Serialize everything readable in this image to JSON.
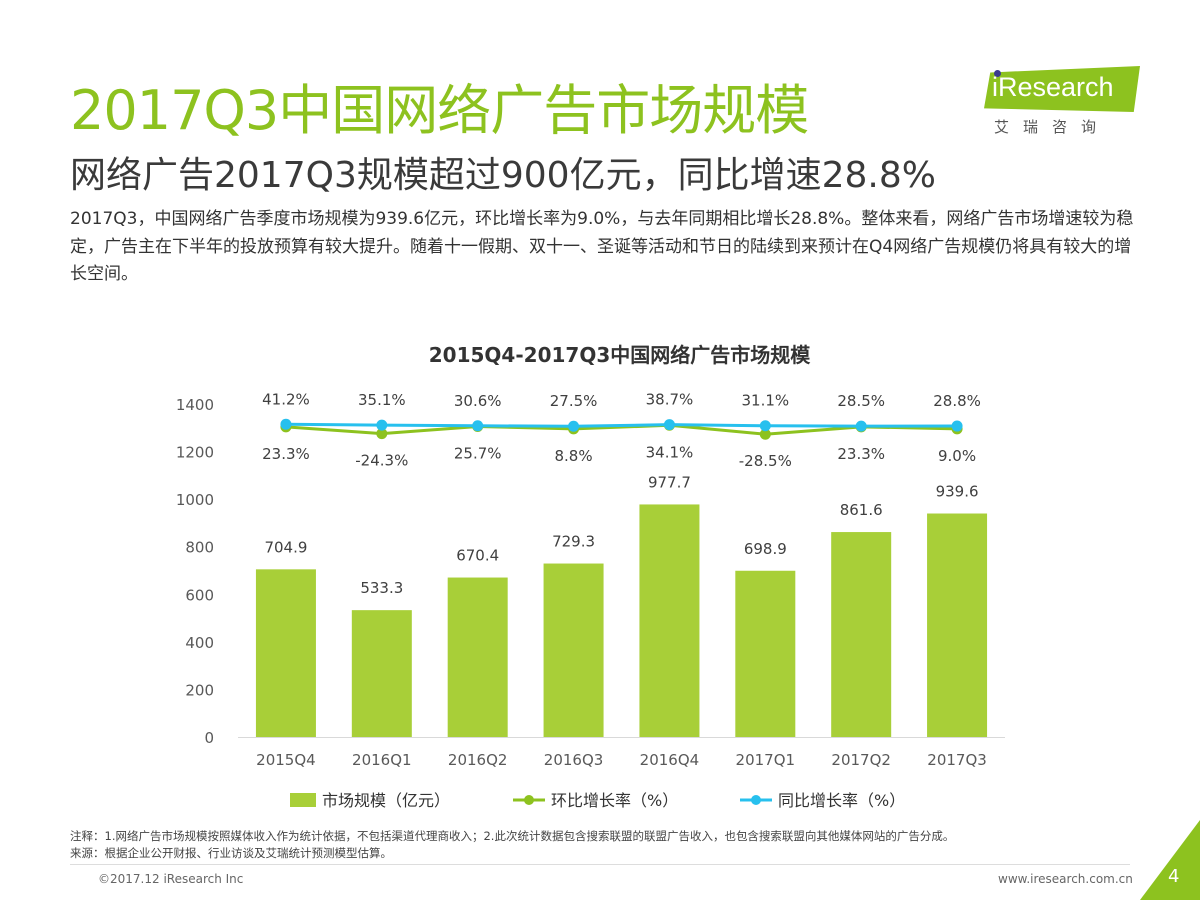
{
  "header": {
    "title": "2017Q3中国网络广告市场规模",
    "subtitle": "网络广告2017Q3规模超过900亿元，同比增速28.8%",
    "body": "2017Q3，中国网络广告季度市场规模为939.6亿元，环比增长率为9.0%，与去年同期相比增长28.8%。整体来看，网络广告市场增速较为稳定，广告主在下半年的投放预算有较大提升。随着十一假期、双十一、圣诞等活动和节日的陆续到来预计在Q4网络广告规模仍将具有较大的增长空间。"
  },
  "logo": {
    "text": "iResearch",
    "cn": "艾瑞咨询"
  },
  "chart_data": {
    "type": "bar",
    "title": "2015Q4-2017Q3中国网络广告市场规模",
    "categories": [
      "2015Q4",
      "2016Q1",
      "2016Q2",
      "2016Q3",
      "2016Q4",
      "2017Q1",
      "2017Q2",
      "2017Q3"
    ],
    "series": [
      {
        "name": "市场规模（亿元）",
        "type": "bar",
        "values": [
          704.9,
          533.3,
          670.4,
          729.3,
          977.7,
          698.9,
          861.6,
          939.6
        ],
        "labels": [
          "704.9",
          "533.3",
          "670.4",
          "729.3",
          "977.7",
          "698.9",
          "861.6",
          "939.6"
        ],
        "color": "#a8cf38"
      },
      {
        "name": "环比增长率（%）",
        "type": "line",
        "values": [
          23.3,
          -24.3,
          25.7,
          8.8,
          34.1,
          -28.5,
          23.3,
          9.0
        ],
        "labels": [
          "23.3%",
          "-24.3%",
          "25.7%",
          "8.8%",
          "34.1%",
          "-28.5%",
          "23.3%",
          "9.0%"
        ],
        "color": "#8dc21f"
      },
      {
        "name": "同比增长率（%）",
        "type": "line",
        "values": [
          41.2,
          35.1,
          30.6,
          27.5,
          38.7,
          31.1,
          28.5,
          28.8
        ],
        "labels": [
          "41.2%",
          "35.1%",
          "30.6%",
          "27.5%",
          "38.7%",
          "31.1%",
          "28.5%",
          "28.8%"
        ],
        "color": "#27c0ee"
      }
    ],
    "ylim": [
      0,
      1400
    ],
    "yticks": [
      0,
      200,
      400,
      600,
      800,
      1000,
      1200,
      1400
    ],
    "legend_position": "bottom",
    "grid": false
  },
  "notes": {
    "note": "注释：1.网络广告市场规模按照媒体收入作为统计依据，不包括渠道代理商收入；2.此次统计数据包含搜索联盟的联盟广告收入，也包含搜索联盟向其他媒体网站的广告分成。",
    "source": "来源：根据企业公开财报、行业访谈及艾瑞统计预测模型估算。"
  },
  "footer": {
    "copyright": "©2017.12 iResearch Inc",
    "url": "www.iresearch.com.cn",
    "page": "4"
  }
}
